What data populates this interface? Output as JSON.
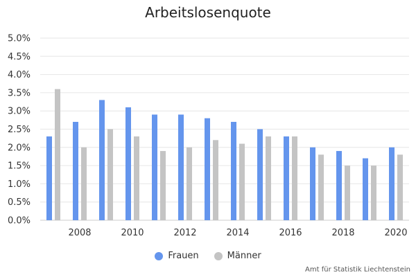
{
  "chart_data": {
    "type": "bar",
    "title": "Arbeitslosenquote",
    "x": [
      2007,
      2008,
      2009,
      2010,
      2011,
      2012,
      2013,
      2014,
      2015,
      2016,
      2017,
      2018,
      2019,
      2020
    ],
    "x_tick_labels": [
      "2008",
      "2010",
      "2012",
      "2014",
      "2016",
      "2018",
      "2020"
    ],
    "series": [
      {
        "name": "Frauen",
        "color": "#6495ed",
        "values": [
          2.3,
          2.7,
          3.3,
          3.1,
          2.9,
          2.9,
          2.8,
          2.7,
          2.5,
          2.3,
          2.0,
          1.9,
          1.7,
          2.0
        ]
      },
      {
        "name": "Männer",
        "color": "#c4c4c4",
        "values": [
          3.6,
          2.0,
          2.5,
          2.3,
          1.9,
          2.0,
          2.2,
          2.1,
          2.3,
          2.3,
          1.8,
          1.5,
          1.5,
          1.8
        ]
      }
    ],
    "y_tick_labels": [
      "0.0%",
      "0.5%",
      "1.0%",
      "1.5%",
      "2.0%",
      "2.5%",
      "3.0%",
      "3.5%",
      "4.0%",
      "4.5%",
      "5.0%"
    ],
    "ylim": [
      0,
      5
    ],
    "ytick_step": 0.5,
    "grid": true,
    "legend_position": "bottom-center",
    "source": "Amt für Statistik Liechtenstein"
  }
}
